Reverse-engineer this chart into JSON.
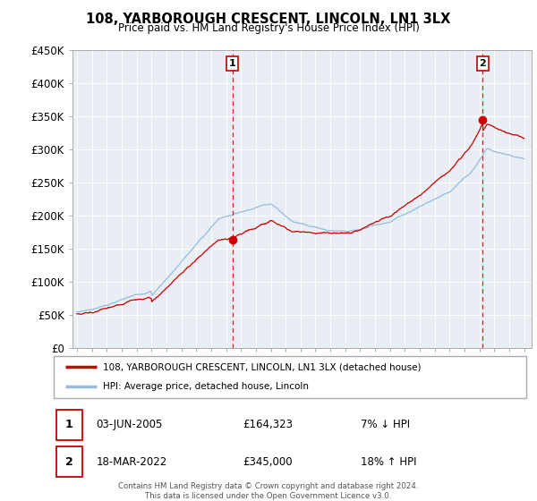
{
  "title": "108, YARBOROUGH CRESCENT, LINCOLN, LN1 3LX",
  "subtitle": "Price paid vs. HM Land Registry's House Price Index (HPI)",
  "legend_line1": "108, YARBOROUGH CRESCENT, LINCOLN, LN1 3LX (detached house)",
  "legend_line2": "HPI: Average price, detached house, Lincoln",
  "annotation1_date": "03-JUN-2005",
  "annotation1_price": "£164,323",
  "annotation1_hpi": "7% ↓ HPI",
  "annotation2_date": "18-MAR-2022",
  "annotation2_price": "£345,000",
  "annotation2_hpi": "18% ↑ HPI",
  "footer": "Contains HM Land Registry data © Crown copyright and database right 2024.\nThis data is licensed under the Open Government Licence v3.0.",
  "price_color": "#cc0000",
  "hpi_color": "#99bbdd",
  "vline_color": "#cc0000",
  "plot_bg": "#e8eef4",
  "ylim_min": 0,
  "ylim_max": 450000,
  "yticks": [
    0,
    50000,
    100000,
    150000,
    200000,
    250000,
    300000,
    350000,
    400000,
    450000
  ],
  "year_start": 1995,
  "year_end": 2025,
  "sale1_year": 2005.42,
  "sale1_price": 164323,
  "sale2_year": 2022.21,
  "sale2_price": 345000
}
